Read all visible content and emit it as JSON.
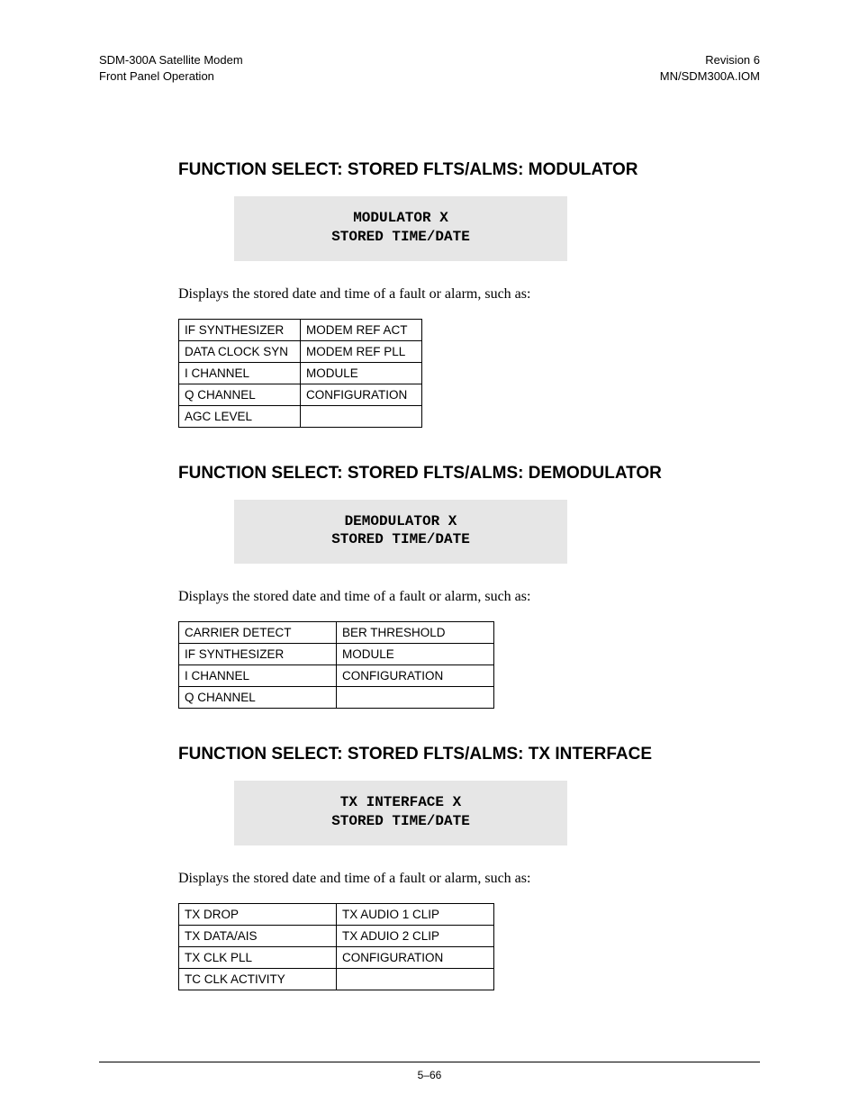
{
  "header": {
    "left_line1": "SDM-300A Satellite Modem",
    "left_line2": "Front Panel Operation",
    "right_line1": "Revision 6",
    "right_line2": "MN/SDM300A.IOM"
  },
  "sections": {
    "modulator": {
      "heading": "FUNCTION SELECT: STORED FLTS/ALMS: MODULATOR",
      "lcd_line1": "MODULATOR  X",
      "lcd_line2": "STORED TIME/DATE",
      "body": "Displays the stored date and time of a fault or alarm,  such as:",
      "table": [
        [
          "IF SYNTHESIZER",
          "MODEM REF ACT"
        ],
        [
          "DATA CLOCK SYN",
          "MODEM REF PLL"
        ],
        [
          "I CHANNEL",
          "MODULE"
        ],
        [
          "Q CHANNEL",
          "CONFIGURATION"
        ],
        [
          "AGC LEVEL",
          ""
        ]
      ]
    },
    "demodulator": {
      "heading": "FUNCTION SELECT: STORED FLTS/ALMS: DEMODULATOR",
      "lcd_line1": "DEMODULATOR  X",
      "lcd_line2": "STORED TIME/DATE",
      "body": "Displays the stored date and time of a fault or alarm, such as:",
      "table": [
        [
          "CARRIER DETECT",
          "BER THRESHOLD"
        ],
        [
          "IF SYNTHESIZER",
          "MODULE"
        ],
        [
          "I CHANNEL",
          "CONFIGURATION"
        ],
        [
          "Q CHANNEL",
          ""
        ]
      ]
    },
    "tx_interface": {
      "heading": "FUNCTION SELECT: STORED FLTS/ALMS: TX INTERFACE",
      "lcd_line1": "TX INTERFACE  X",
      "lcd_line2": "STORED TIME/DATE",
      "body": "Displays the stored date and time of a fault or alarm, such as:",
      "table": [
        [
          "TX DROP",
          "TX AUDIO 1 CLIP"
        ],
        [
          "TX DATA/AIS",
          "TX ADUIO 2 CLIP"
        ],
        [
          "TX CLK PLL",
          "CONFIGURATION"
        ],
        [
          "TC CLK ACTIVITY",
          ""
        ]
      ]
    }
  },
  "footer": {
    "page_number": "5–66"
  }
}
